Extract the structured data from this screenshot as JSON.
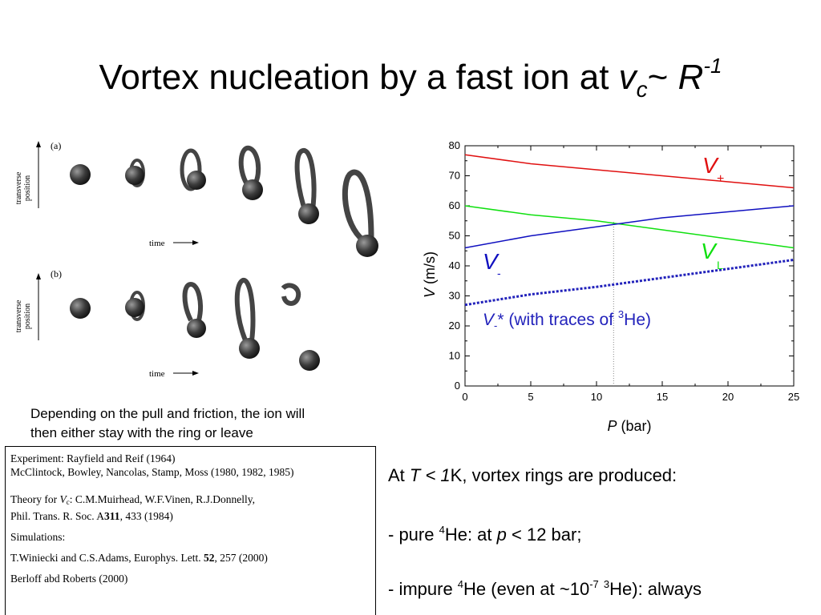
{
  "slide": {
    "title_prefix": "Vortex nucleation by a fast ion at ",
    "title_v": "v",
    "title_v_sub": "c",
    "title_tilde": "~ ",
    "title_r": "R",
    "title_r_sup": "-1"
  },
  "simulation_figure": {
    "panel_a_label": "(a)",
    "panel_b_label": "(b)",
    "y_axis_label_line1": "transverse",
    "y_axis_label_line2": "position",
    "x_axis_label": "time"
  },
  "caption": {
    "line1": "Depending on the pull and friction, the ion will",
    "line2": "then either stay with the ring or leave"
  },
  "references": {
    "experiment_line1": "Experiment: Rayfield and Reif (1964)",
    "experiment_line2": "McClintock, Bowley, Nancolas, Stamp, Moss (1980, 1982, 1985)",
    "theory_prefix": "Theory for ",
    "theory_v": "V",
    "theory_v_sub": "c",
    "theory_rest": ": C.M.Muirhead, W.F.Vinen, R.J.Donnelly,",
    "theory_journal_prefix": "Phil. Trans. R. Soc. A",
    "theory_volume": "311",
    "theory_journal_suffix": ", 433 (1984)",
    "simulations_label": "Simulations:",
    "sim1_prefix": "T.Winiecki and C.S.Adams, Europhys. Lett. ",
    "sim1_volume": "52",
    "sim1_suffix": ", 257 (2000)",
    "sim2": "Berloff abd Roberts (2000)"
  },
  "right_text": {
    "line1_a": "At ",
    "line1_t": "T",
    "line1_b": " < 1",
    "line1_c": "K, vortex rings are produced:",
    "line2_a": "- pure ",
    "line2_sup": "4",
    "line2_b": "He: at ",
    "line2_p": "p",
    "line2_c": " < 12 bar;",
    "line3_a": "- impure ",
    "line3_sup1": "4",
    "line3_b": "He (even at ~10",
    "line3_sup2": "-7",
    "line3_c": " ",
    "line3_sup3": "3",
    "line3_d": "He): always"
  },
  "chart_data": {
    "type": "line",
    "xlabel_var": "P",
    "xlabel_unit": " (bar)",
    "ylabel_var": "V",
    "ylabel_unit": " (m/s)",
    "xlim": [
      0,
      25
    ],
    "ylim": [
      0,
      80
    ],
    "xticks": [
      0,
      5,
      10,
      15,
      20,
      25
    ],
    "yticks": [
      0,
      10,
      20,
      30,
      40,
      50,
      60,
      70,
      80
    ],
    "vline_x": 11.3,
    "series": [
      {
        "name": "V+",
        "color": "#e01010",
        "style": "solid",
        "x": [
          0,
          5,
          10,
          15,
          20,
          25
        ],
        "y": [
          77,
          74,
          72,
          70,
          68,
          66
        ]
      },
      {
        "name": "VL",
        "color": "#10e010",
        "style": "solid",
        "x": [
          0,
          5,
          10,
          15,
          20,
          25
        ],
        "y": [
          60,
          57,
          55,
          52,
          49,
          46
        ]
      },
      {
        "name": "V-",
        "color": "#1010c0",
        "style": "solid",
        "x": [
          0,
          5,
          10,
          15,
          20,
          25
        ],
        "y": [
          46,
          50,
          53,
          56,
          58,
          60
        ]
      },
      {
        "name": "V-*",
        "color": "#2222bb",
        "style": "dotted",
        "x": [
          0,
          5,
          10,
          15,
          20,
          25
        ],
        "y": [
          27,
          30.5,
          33,
          36,
          39,
          42
        ]
      }
    ],
    "labels": {
      "vplus_main": "V",
      "vplus_sub": "+",
      "vl_main": "V",
      "vl_sub": "L",
      "vminus_main": "V",
      "vminus_sub": "-",
      "vstar_main": "V",
      "vstar_sub": "-",
      "vstar_rest1": "* (with traces of ",
      "vstar_sup": "3",
      "vstar_rest2": "He)"
    }
  }
}
